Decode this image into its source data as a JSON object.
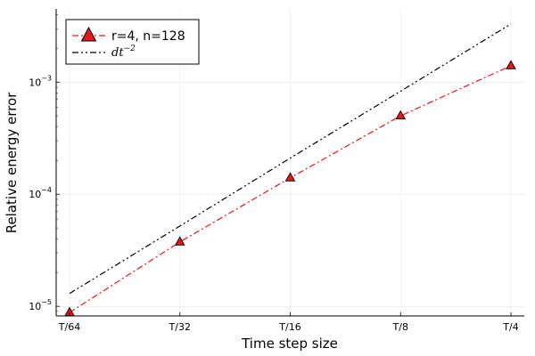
{
  "chart_data": {
    "type": "line",
    "xlabel": "Time step size",
    "ylabel": "Relative energy error",
    "categories": [
      "T/64",
      "T/32",
      "T/16",
      "T/8",
      "T/4"
    ],
    "yscale": "log",
    "ylim": [
      8.2e-06,
      0.0045
    ],
    "y_ticks": [
      {
        "value": 1e-05,
        "mantissa": "10",
        "exp": "−5"
      },
      {
        "value": 0.0001,
        "mantissa": "10",
        "exp": "−4"
      },
      {
        "value": 0.001,
        "mantissa": "10",
        "exp": "−3"
      }
    ],
    "grid": true,
    "legend_position": "top-left",
    "series": [
      {
        "name": "r=4, n=128",
        "color": "#e31a1c",
        "marker": "triangle",
        "linestyle": "dash-dot",
        "values": [
          8.8e-06,
          3.75e-05,
          0.00014,
          0.0005,
          0.0014
        ]
      },
      {
        "name_base": "dt",
        "name_exp": "−2",
        "color": "#000000",
        "marker": "none",
        "linestyle": "dash-dot-dot",
        "values": [
          1.3e-05,
          5.2e-05,
          0.00021,
          0.00083,
          0.0033
        ]
      }
    ]
  }
}
